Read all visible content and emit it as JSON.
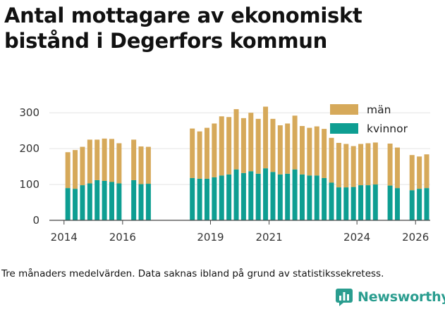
{
  "title": "Antal mottagare av ekonomiskt bistånd i Degerfors kommun",
  "caption": "Tre månaders medelvärden. Data saknas ibland på grund av statistikssekretess.",
  "brand": {
    "name": "Newsworthy",
    "icon": "bar-chart-logo-icon",
    "color": "#2a9d8f"
  },
  "chart_data": {
    "type": "bar",
    "stacked": true,
    "title": "Antal mottagare av ekonomiskt bistånd i Degerfors kommun",
    "xlabel": "",
    "ylabel": "",
    "ylim": [
      0,
      320
    ],
    "yticks": [
      0,
      100,
      200,
      300
    ],
    "grid": true,
    "legend_position": "top-right",
    "x_range": [
      2013.5,
      2026.5
    ],
    "xtick_labels": [
      "2014",
      "2016",
      "2019",
      "2021",
      "2024",
      "2026"
    ],
    "xtick_values": [
      2014,
      2016,
      2019,
      2021,
      2024,
      2026
    ],
    "x": [
      2014.13,
      2014.38,
      2014.63,
      2014.88,
      2015.13,
      2015.38,
      2015.63,
      2015.88,
      2016.38,
      2016.63,
      2016.88,
      2018.38,
      2018.63,
      2018.88,
      2019.13,
      2019.38,
      2019.63,
      2019.88,
      2020.13,
      2020.38,
      2020.63,
      2020.88,
      2021.13,
      2021.38,
      2021.63,
      2021.88,
      2022.13,
      2022.38,
      2022.63,
      2022.88,
      2023.13,
      2023.38,
      2023.63,
      2023.88,
      2024.13,
      2024.38,
      2024.63,
      2025.13,
      2025.38,
      2025.88,
      2026.13,
      2026.38
    ],
    "series": [
      {
        "name": "kvinnor",
        "color": "#0e9e92",
        "values": [
          90,
          88,
          98,
          103,
          112,
          110,
          107,
          103,
          112,
          101,
          102,
          118,
          116,
          116,
          120,
          125,
          128,
          142,
          132,
          137,
          130,
          145,
          135,
          128,
          130,
          142,
          128,
          125,
          125,
          118,
          105,
          92,
          92,
          93,
          98,
          98,
          100,
          97,
          90,
          84,
          88,
          90
        ]
      },
      {
        "name": "män",
        "color": "#d6a95a",
        "values": [
          100,
          108,
          107,
          122,
          113,
          118,
          120,
          112,
          113,
          105,
          103,
          138,
          132,
          142,
          150,
          165,
          160,
          168,
          153,
          163,
          153,
          172,
          148,
          137,
          140,
          150,
          135,
          133,
          137,
          137,
          125,
          124,
          121,
          114,
          115,
          117,
          117,
          117,
          113,
          98,
          90,
          94
        ]
      }
    ]
  }
}
